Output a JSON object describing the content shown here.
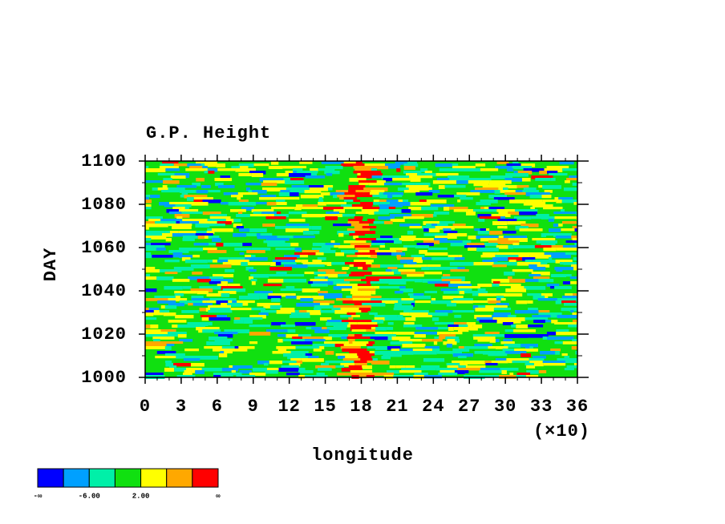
{
  "chart_data": {
    "type": "contour",
    "title": "G.P. Height",
    "x_label": "longitude",
    "x_multiplier": "(×10)",
    "y_label": "DAY",
    "xlim": [
      0,
      36
    ],
    "xticks": [
      0,
      3,
      6,
      9,
      12,
      15,
      18,
      21,
      24,
      27,
      30,
      33,
      36
    ],
    "ylim": [
      1000,
      1100
    ],
    "yticks": [
      1000,
      1020,
      1040,
      1060,
      1080,
      1100
    ],
    "colorbar": {
      "colors": [
        "#0000ff",
        "#00a0ff",
        "#00f0a8",
        "#10e010",
        "#ffff00",
        "#ffa800",
        "#ff0000"
      ],
      "levels": [
        -10,
        -6,
        -2,
        2,
        6,
        10
      ],
      "ticks": [
        {
          "value": -6,
          "label": "-6.00"
        },
        {
          "value": 2,
          "label": "2.00"
        }
      ],
      "low_label": "-∞",
      "high_label": "∞"
    }
  }
}
